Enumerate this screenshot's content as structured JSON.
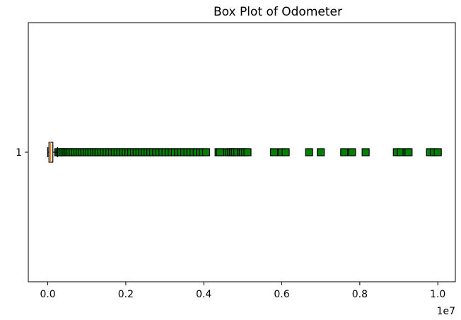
{
  "chart_data": {
    "type": "boxplot",
    "orientation": "horizontal",
    "title": "Box Plot of Odometer",
    "xlabel": "",
    "ylabel": "",
    "x_offset_label": "1e7",
    "xlim": [
      -0.05,
      1.045
    ],
    "x_ticks": [
      0.0,
      0.2,
      0.4,
      0.6,
      0.8,
      1.0
    ],
    "x_tick_labels": [
      "0.0",
      "0.2",
      "0.4",
      "0.6",
      "0.8",
      "1.0"
    ],
    "categories": [
      "1"
    ],
    "box": {
      "whisker_low": 0.0,
      "q1": 0.003,
      "median": 0.007,
      "q3": 0.013,
      "whisker_high": 0.025
    },
    "outliers": [
      0.027,
      0.03,
      0.034,
      0.038,
      0.043,
      0.048,
      0.053,
      0.058,
      0.064,
      0.07,
      0.076,
      0.082,
      0.088,
      0.094,
      0.1,
      0.106,
      0.112,
      0.118,
      0.124,
      0.13,
      0.137,
      0.144,
      0.151,
      0.158,
      0.165,
      0.172,
      0.179,
      0.186,
      0.193,
      0.2,
      0.207,
      0.214,
      0.221,
      0.228,
      0.235,
      0.242,
      0.249,
      0.256,
      0.263,
      0.27,
      0.278,
      0.286,
      0.294,
      0.302,
      0.31,
      0.318,
      0.326,
      0.334,
      0.342,
      0.35,
      0.358,
      0.366,
      0.374,
      0.382,
      0.39,
      0.398,
      0.406,
      0.438,
      0.442,
      0.46,
      0.465,
      0.47,
      0.475,
      0.48,
      0.486,
      0.495,
      0.5,
      0.506,
      0.512,
      0.58,
      0.6,
      0.61,
      0.67,
      0.7,
      0.76,
      0.78,
      0.815,
      0.895,
      0.905,
      0.92,
      0.925,
      0.98,
      0.99,
      1.0
    ],
    "colors": {
      "box_edge": "#000000",
      "median": "#ff7f0e",
      "outlier_fill": "#008000",
      "outlier_edge": "#000000",
      "axes": "#000000"
    },
    "grid": false
  }
}
